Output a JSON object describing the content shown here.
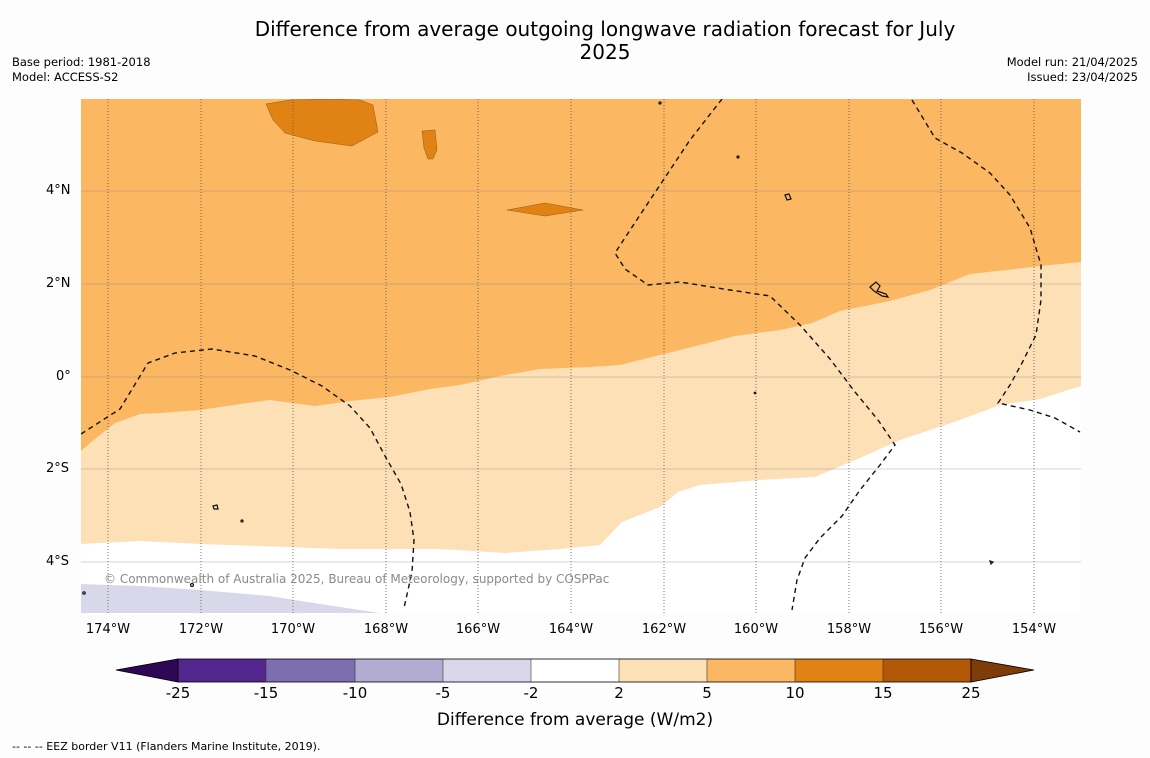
{
  "title": "Difference from average outgoing longwave radiation forecast for July 2025",
  "base_period": "Base period: 1981-2018",
  "model": "Model: ACCESS-S2",
  "model_run": "Model run: 21/04/2025",
  "issued": "Issued: 23/04/2025",
  "copyright": "© Commonwealth of Australia 2025, Bureau of Meteorology, supported by COSPPac",
  "footnote": "--  --  -- EEZ border V11 (Flanders Marine Institute, 2019).",
  "map": {
    "lat_labels": [
      "4°N",
      "2°N",
      "0°",
      "2°S",
      "4°S"
    ],
    "lon_labels": [
      "174°W",
      "172°W",
      "170°W",
      "168°W",
      "166°W",
      "164°W",
      "162°W",
      "160°W",
      "158°W",
      "156°W",
      "154°W"
    ]
  },
  "colorbar": {
    "label": "Difference from average (W/m2)",
    "ticks": [
      "-25",
      "-15",
      "-10",
      "-5",
      "-2",
      "2",
      "5",
      "10",
      "15",
      "25"
    ],
    "colors": {
      "below_min": "#2e0854",
      "b_-25_-15": "#54278f",
      "b_-15_-10": "#7d6faf",
      "b_-10_-5": "#b2abd2",
      "b_-5_-2": "#d8d8ea",
      "b_-2_2": "#ffffff",
      "b_2_5": "#fde0b6",
      "b_5_10": "#fbb761",
      "b_10_15": "#e08214",
      "b_15_25": "#b35806",
      "above_max": "#7f3b08"
    }
  }
}
